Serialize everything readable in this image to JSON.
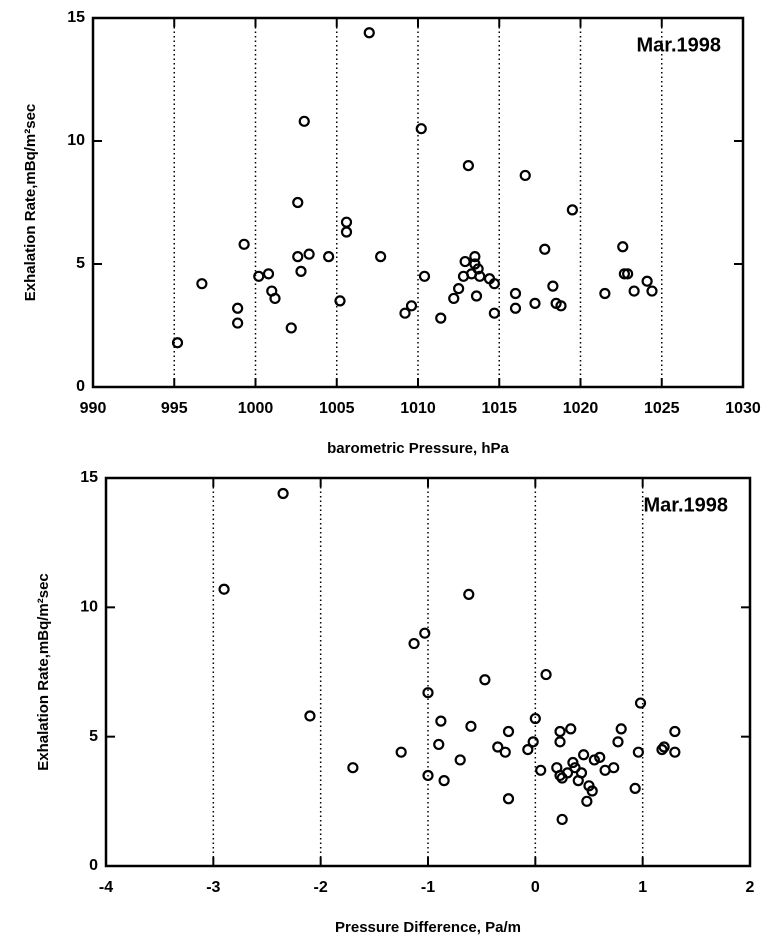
{
  "chart_data": [
    {
      "type": "scatter",
      "annotation": "Mar.1998",
      "xlabel": "barometric Pressure, hPa",
      "ylabel": "Exhalation Rate,mBq/m²sec",
      "color": "#000000",
      "grid": true,
      "xlim": [
        990,
        1030
      ],
      "ylim": [
        0,
        15
      ],
      "xticks": [
        990,
        995,
        1000,
        1005,
        1010,
        1015,
        1020,
        1025,
        1030
      ],
      "yticks": [
        0,
        5,
        10,
        15
      ],
      "x": [
        995.2,
        996.7,
        998.9,
        998.9,
        999.3,
        1000.2,
        1000.8,
        1001.0,
        1001.2,
        1002.2,
        1002.6,
        1002.6,
        1002.8,
        1003.0,
        1003.3,
        1004.5,
        1005.2,
        1005.6,
        1005.6,
        1007.0,
        1007.7,
        1009.2,
        1009.6,
        1010.2,
        1010.4,
        1011.4,
        1012.2,
        1012.5,
        1012.8,
        1012.9,
        1013.1,
        1013.3,
        1013.5,
        1013.5,
        1013.7,
        1013.6,
        1013.8,
        1014.4,
        1014.7,
        1014.7,
        1016.0,
        1016.0,
        1016.6,
        1017.2,
        1017.8,
        1018.3,
        1018.5,
        1018.8,
        1019.5,
        1021.5,
        1022.6,
        1022.7,
        1022.9,
        1023.3,
        1024.1,
        1024.4
      ],
      "values": [
        1.8,
        4.2,
        3.2,
        2.6,
        5.8,
        4.5,
        4.6,
        3.9,
        3.6,
        2.4,
        7.5,
        5.3,
        4.7,
        10.8,
        5.4,
        5.3,
        3.5,
        6.7,
        6.3,
        14.4,
        5.3,
        3.0,
        3.3,
        10.5,
        4.5,
        2.8,
        3.6,
        4.0,
        4.5,
        5.1,
        9.0,
        4.6,
        5.3,
        5.0,
        4.8,
        3.7,
        4.5,
        4.4,
        4.2,
        3.0,
        3.8,
        3.2,
        8.6,
        3.4,
        5.6,
        4.1,
        3.4,
        3.3,
        7.2,
        3.8,
        5.7,
        4.6,
        4.6,
        3.9,
        4.3,
        3.9
      ]
    },
    {
      "type": "scatter",
      "annotation": "Mar.1998",
      "xlabel": "Pressure Difference, Pa/m",
      "ylabel": "Exhalation Rate,mBq/m²sec",
      "color": "#000000",
      "grid": true,
      "xlim": [
        -4,
        2
      ],
      "ylim": [
        0,
        15
      ],
      "xticks": [
        -4,
        -3,
        -2,
        -1,
        0,
        1,
        2
      ],
      "yticks": [
        0,
        5,
        10,
        15
      ],
      "x": [
        -2.9,
        -2.35,
        -2.1,
        -1.7,
        -1.25,
        -1.13,
        -1.03,
        -1.0,
        -1.0,
        -0.88,
        -0.9,
        -0.85,
        -0.7,
        -0.6,
        -0.62,
        -0.47,
        -0.35,
        -0.28,
        -0.25,
        -0.25,
        -0.07,
        -0.02,
        0.0,
        0.05,
        0.1,
        0.2,
        0.23,
        0.23,
        0.23,
        0.25,
        0.25,
        0.3,
        0.33,
        0.35,
        0.37,
        0.4,
        0.43,
        0.45,
        0.48,
        0.5,
        0.53,
        0.55,
        0.6,
        0.65,
        0.73,
        0.77,
        0.8,
        0.93,
        0.96,
        0.98,
        1.18,
        1.2,
        1.3,
        1.3
      ],
      "values": [
        10.7,
        14.4,
        5.8,
        3.8,
        4.4,
        8.6,
        9.0,
        6.7,
        3.5,
        5.6,
        4.7,
        3.3,
        4.1,
        5.4,
        10.5,
        7.2,
        4.6,
        4.4,
        5.2,
        2.6,
        4.5,
        4.8,
        5.7,
        3.7,
        7.4,
        3.8,
        5.2,
        4.8,
        3.5,
        3.4,
        1.8,
        3.6,
        5.3,
        4.0,
        3.8,
        3.3,
        3.6,
        4.3,
        2.5,
        3.1,
        2.9,
        4.1,
        4.2,
        3.7,
        3.8,
        4.8,
        5.3,
        3.0,
        4.4,
        6.3,
        4.5,
        4.6,
        4.4,
        5.2
      ]
    }
  ]
}
